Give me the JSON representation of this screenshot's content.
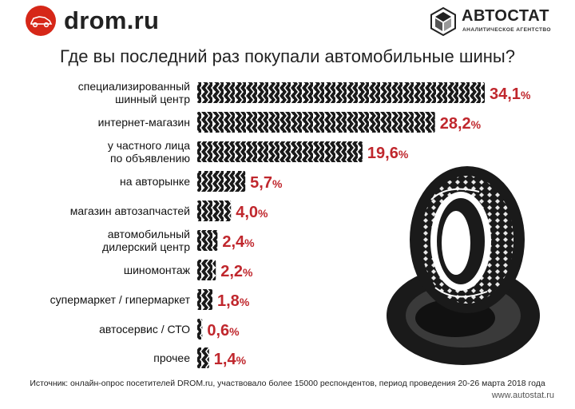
{
  "header": {
    "drom_logo_text": "drom.ru",
    "drom_icon": "red-circle-car-icon",
    "autostat_logo_text": "АВТОСТАТ",
    "autostat_tagline": "АНАЛИТИЧЕСКОЕ АГЕНТСТВО",
    "autostat_icon": "hexagon-cube-icon"
  },
  "footer": {
    "source": "Источник: онлайн-опрос посетителей DROM.ru, участвовало более 15000 респондентов, период проведения 20-26 марта 2018 года",
    "site": "www.autostat.ru"
  },
  "colors": {
    "value_label": "#c0272d",
    "bar": "#1a1a1a",
    "drom_red": "#d62718"
  },
  "decoration": {
    "image": "tire-illustration"
  },
  "chart_data": {
    "type": "bar",
    "orientation": "horizontal",
    "title": "Где вы последний раз покупали автомобильные шины?",
    "categories": [
      "специализированный шинный центр",
      "интернет-магазин",
      "у частного лица по объявлению",
      "на авторынке",
      "магазин автозапчастей",
      "автомобильный дилерский центр",
      "шиномонтаж",
      "супермаркет / гипермаркет",
      "автосервис / СТО",
      "прочее"
    ],
    "category_lines": [
      [
        "специализированный",
        "шинный центр"
      ],
      [
        "интернет-магазин"
      ],
      [
        "у частного лица",
        "по объявлению"
      ],
      [
        "на авторынке"
      ],
      [
        "магазин автозапчастей"
      ],
      [
        "автомобильный",
        "дилерский центр"
      ],
      [
        "шиномонтаж"
      ],
      [
        "супермаркет / гипермаркет"
      ],
      [
        "автосервис / СТО"
      ],
      [
        "прочее"
      ]
    ],
    "values": [
      34.1,
      28.2,
      19.6,
      5.7,
      4.0,
      2.4,
      2.2,
      1.8,
      0.6,
      1.4
    ],
    "value_labels": [
      "34,1",
      "28,2",
      "19,6",
      "5,7",
      "4,0",
      "2,4",
      "2,2",
      "1,8",
      "0,6",
      "1,4"
    ],
    "unit": "%",
    "xlabel": "",
    "ylabel": "",
    "xlim": [
      0,
      34.1
    ],
    "grid": false,
    "legend": "none"
  }
}
